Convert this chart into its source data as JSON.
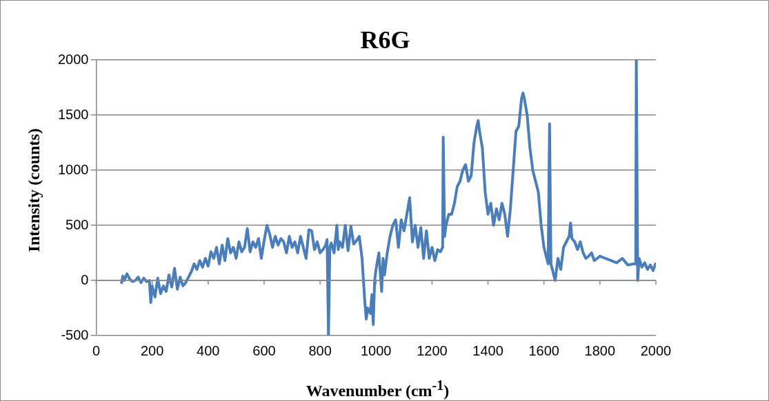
{
  "chart_data": {
    "type": "line",
    "title": "R6G",
    "xlabel": "Wavenumber (cm$^{-1}$)",
    "ylabel": "Intensity (counts)",
    "x": [
      90,
      95,
      100,
      110,
      120,
      130,
      140,
      150,
      160,
      170,
      180,
      190,
      195,
      200,
      210,
      220,
      230,
      240,
      250,
      260,
      270,
      280,
      290,
      300,
      310,
      320,
      340,
      350,
      360,
      370,
      380,
      390,
      400,
      410,
      420,
      430,
      440,
      450,
      460,
      470,
      480,
      490,
      500,
      510,
      520,
      530,
      540,
      550,
      560,
      570,
      580,
      590,
      600,
      610,
      620,
      630,
      640,
      650,
      660,
      670,
      680,
      690,
      700,
      710,
      720,
      730,
      740,
      750,
      760,
      770,
      780,
      790,
      800,
      810,
      820,
      825,
      830,
      835,
      840,
      850,
      860,
      865,
      870,
      880,
      890,
      900,
      910,
      920,
      930,
      940,
      950,
      960,
      965,
      970,
      980,
      985,
      990,
      995,
      1000,
      1010,
      1020,
      1025,
      1030,
      1040,
      1050,
      1060,
      1070,
      1080,
      1090,
      1100,
      1110,
      1120,
      1130,
      1140,
      1150,
      1160,
      1170,
      1180,
      1190,
      1200,
      1210,
      1220,
      1230,
      1238,
      1240,
      1245,
      1250,
      1260,
      1270,
      1280,
      1290,
      1300,
      1310,
      1320,
      1330,
      1340,
      1350,
      1360,
      1365,
      1370,
      1380,
      1390,
      1400,
      1410,
      1420,
      1430,
      1440,
      1450,
      1460,
      1470,
      1480,
      1490,
      1500,
      1510,
      1520,
      1525,
      1530,
      1540,
      1550,
      1560,
      1570,
      1580,
      1590,
      1600,
      1610,
      1615,
      1620,
      1625,
      1630,
      1640,
      1650,
      1660,
      1670,
      1680,
      1690,
      1695,
      1700,
      1710,
      1720,
      1730,
      1740,
      1750,
      1760,
      1770,
      1780,
      1790,
      1800,
      1820,
      1840,
      1860,
      1880,
      1900,
      1920,
      1928,
      1930,
      1935,
      1940,
      1950,
      1960,
      1970,
      1980,
      1990,
      2000
    ],
    "series": [
      {
        "color": "#4a7ebb",
        "values": [
          -30,
          40,
          0,
          60,
          10,
          -10,
          0,
          30,
          -20,
          20,
          -10,
          0,
          -200,
          -50,
          -150,
          20,
          -120,
          -50,
          -100,
          50,
          -60,
          110,
          -80,
          30,
          -50,
          -20,
          80,
          150,
          100,
          180,
          120,
          200,
          130,
          260,
          200,
          300,
          150,
          320,
          180,
          380,
          250,
          300,
          200,
          350,
          260,
          300,
          470,
          260,
          350,
          300,
          380,
          200,
          360,
          500,
          420,
          300,
          400,
          320,
          380,
          350,
          250,
          400,
          300,
          350,
          250,
          400,
          300,
          200,
          460,
          450,
          280,
          350,
          250,
          280,
          320,
          370,
          -500,
          300,
          340,
          250,
          500,
          280,
          350,
          300,
          500,
          270,
          490,
          330,
          360,
          400,
          200,
          -200,
          -350,
          -250,
          -300,
          -130,
          -400,
          0,
          100,
          250,
          -100,
          200,
          50,
          250,
          400,
          500,
          550,
          300,
          550,
          450,
          600,
          750,
          350,
          500,
          300,
          480,
          200,
          450,
          200,
          300,
          180,
          280,
          260,
          300,
          1300,
          400,
          500,
          600,
          600,
          700,
          850,
          900,
          1000,
          1050,
          900,
          950,
          1250,
          1400,
          1450,
          1350,
          1200,
          800,
          600,
          700,
          500,
          650,
          550,
          700,
          600,
          400,
          650,
          1000,
          1350,
          1400,
          1650,
          1700,
          1650,
          1500,
          1200,
          1000,
          900,
          800,
          500,
          300,
          200,
          150,
          1420,
          150,
          100,
          0,
          200,
          100,
          300,
          350,
          400,
          520,
          380,
          350,
          280,
          350,
          250,
          200,
          220,
          250,
          180,
          200,
          220,
          200,
          180,
          160,
          200,
          140,
          150,
          150,
          2000,
          0,
          200,
          120,
          160,
          100,
          140,
          90,
          160
        ]
      }
    ],
    "xlim": [
      0,
      2000
    ],
    "xticks": [
      0,
      200,
      400,
      600,
      800,
      1000,
      1200,
      1400,
      1600,
      1800,
      2000
    ],
    "ylim": [
      -500,
      2000
    ],
    "yticks": [
      -500,
      0,
      500,
      1000,
      1500,
      2000
    ],
    "grid": "y",
    "legend": false,
    "marker": "none",
    "line_style": "solid"
  }
}
